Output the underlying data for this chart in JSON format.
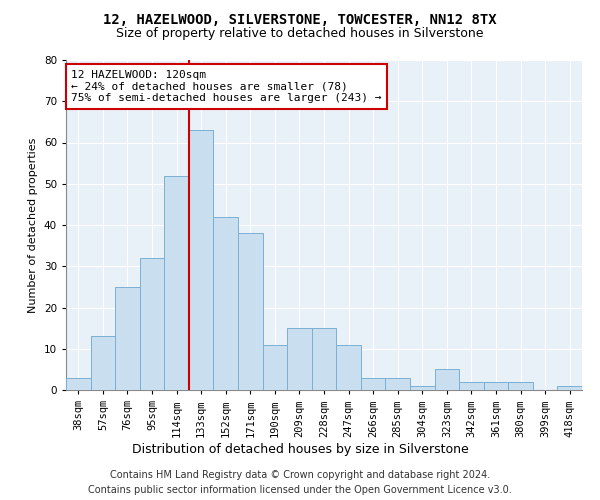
{
  "title": "12, HAZELWOOD, SILVERSTONE, TOWCESTER, NN12 8TX",
  "subtitle": "Size of property relative to detached houses in Silverstone",
  "xlabel": "Distribution of detached houses by size in Silverstone",
  "ylabel": "Number of detached properties",
  "categories": [
    "38sqm",
    "57sqm",
    "76sqm",
    "95sqm",
    "114sqm",
    "133sqm",
    "152sqm",
    "171sqm",
    "190sqm",
    "209sqm",
    "228sqm",
    "247sqm",
    "266sqm",
    "285sqm",
    "304sqm",
    "323sqm",
    "342sqm",
    "361sqm",
    "380sqm",
    "399sqm",
    "418sqm"
  ],
  "values": [
    3,
    13,
    25,
    32,
    52,
    63,
    42,
    38,
    11,
    15,
    15,
    11,
    3,
    3,
    1,
    5,
    2,
    2,
    2,
    0,
    1
  ],
  "bar_color": "#c9dff0",
  "bar_edge_color": "#7aafd4",
  "vline_color": "#cc0000",
  "vline_pos": 4.5,
  "ylim": [
    0,
    80
  ],
  "yticks": [
    0,
    10,
    20,
    30,
    40,
    50,
    60,
    70,
    80
  ],
  "annotation_title": "12 HAZELWOOD: 120sqm",
  "annotation_line1": "← 24% of detached houses are smaller (78)",
  "annotation_line2": "75% of semi-detached houses are larger (243) →",
  "annotation_box_facecolor": "#ffffff",
  "annotation_box_edgecolor": "#cc0000",
  "footer1": "Contains HM Land Registry data © Crown copyright and database right 2024.",
  "footer2": "Contains public sector information licensed under the Open Government Licence v3.0.",
  "fig_facecolor": "#ffffff",
  "plot_facecolor": "#e8f0f8",
  "grid_color": "#ffffff",
  "title_fontsize": 10,
  "subtitle_fontsize": 9,
  "ylabel_fontsize": 8,
  "xlabel_fontsize": 9,
  "tick_fontsize": 7.5,
  "annotation_fontsize": 8,
  "footer_fontsize": 7
}
